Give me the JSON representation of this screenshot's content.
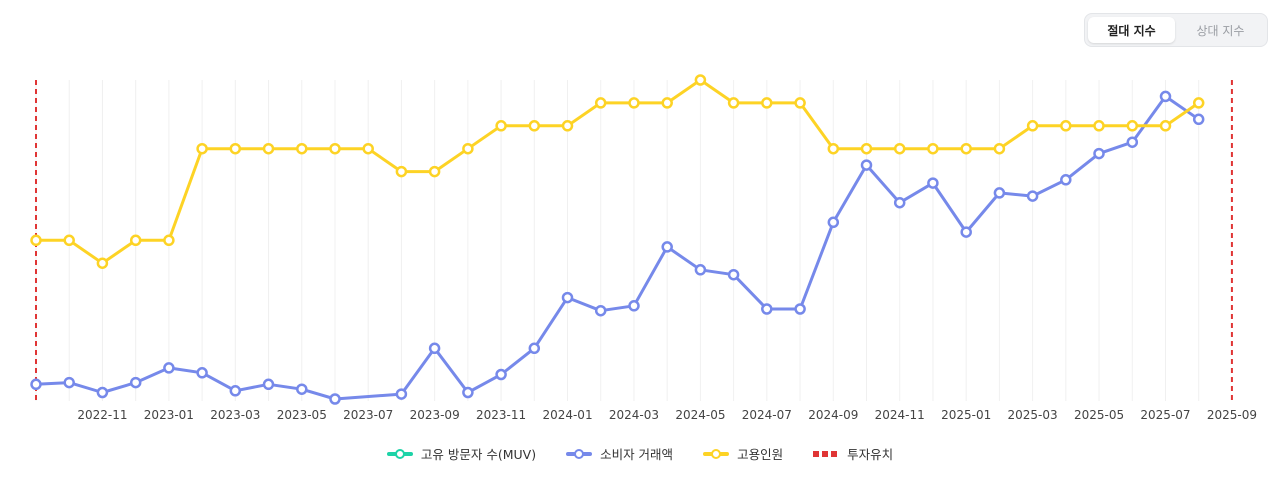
{
  "toggle": {
    "absolute_label": "절대 지수",
    "relative_label": "상대 지수",
    "selected": "absolute"
  },
  "colors": {
    "muv": "#1dd3a7",
    "consumer": "#7689ea",
    "employees": "#fdd325",
    "investment": "#e03535",
    "grid": "#f0f0f0"
  },
  "legend": [
    {
      "key": "muv",
      "label": "고유 방문자 수(MUV)",
      "style": "line-dot"
    },
    {
      "key": "consumer",
      "label": "소비자 거래액",
      "style": "line-dot"
    },
    {
      "key": "employees",
      "label": "고용인원",
      "style": "line-dot"
    },
    {
      "key": "investment",
      "label": "투자유치",
      "style": "dashed"
    }
  ],
  "chart_data": {
    "type": "line",
    "x_start": "2022-09",
    "x_end": "2025-08",
    "x_ticks": [
      "2022-11",
      "2023-01",
      "2023-03",
      "2023-05",
      "2023-07",
      "2023-09",
      "2023-11",
      "2024-01",
      "2024-03",
      "2024-05",
      "2024-07",
      "2024-09",
      "2024-11",
      "2025-01",
      "2025-03",
      "2025-05",
      "2025-07",
      "2025-09"
    ],
    "y_axis_visible": false,
    "grid": "vertical",
    "legend_position": "bottom",
    "series": [
      {
        "name": "소비자 거래액",
        "key": "consumer",
        "points": [
          [
            "2022-09",
            9
          ],
          [
            "2022-10",
            10
          ],
          [
            "2022-11",
            4
          ],
          [
            "2022-12",
            10
          ],
          [
            "2023-01",
            19
          ],
          [
            "2023-02",
            16
          ],
          [
            "2023-03",
            5
          ],
          [
            "2023-04",
            9
          ],
          [
            "2023-05",
            6
          ],
          [
            "2023-06",
            0
          ],
          [
            "2023-08",
            3
          ],
          [
            "2023-09",
            31
          ],
          [
            "2023-10",
            4
          ],
          [
            "2023-11",
            15
          ],
          [
            "2023-12",
            31
          ],
          [
            "2024-01",
            62
          ],
          [
            "2024-02",
            54
          ],
          [
            "2024-03",
            57
          ],
          [
            "2024-04",
            93
          ],
          [
            "2024-05",
            79
          ],
          [
            "2024-06",
            76
          ],
          [
            "2024-07",
            55
          ],
          [
            "2024-08",
            55
          ],
          [
            "2024-09",
            108
          ],
          [
            "2024-10",
            143
          ],
          [
            "2024-11",
            120
          ],
          [
            "2024-12",
            132
          ],
          [
            "2025-01",
            102
          ],
          [
            "2025-02",
            126
          ],
          [
            "2025-03",
            124
          ],
          [
            "2025-04",
            134
          ],
          [
            "2025-05",
            150
          ],
          [
            "2025-06",
            157
          ],
          [
            "2025-07",
            185
          ],
          [
            "2025-08",
            171
          ]
        ]
      },
      {
        "name": "고용인원",
        "key": "employees",
        "points": [
          [
            "2022-09",
            97
          ],
          [
            "2022-10",
            97
          ],
          [
            "2022-11",
            83
          ],
          [
            "2022-12",
            97
          ],
          [
            "2023-01",
            97
          ],
          [
            "2023-02",
            153
          ],
          [
            "2023-03",
            153
          ],
          [
            "2023-04",
            153
          ],
          [
            "2023-05",
            153
          ],
          [
            "2023-06",
            153
          ],
          [
            "2023-07",
            153
          ],
          [
            "2023-08",
            139
          ],
          [
            "2023-09",
            139
          ],
          [
            "2023-10",
            153
          ],
          [
            "2023-11",
            167
          ],
          [
            "2023-12",
            167
          ],
          [
            "2024-01",
            167
          ],
          [
            "2024-02",
            181
          ],
          [
            "2024-03",
            181
          ],
          [
            "2024-04",
            181
          ],
          [
            "2024-05",
            195
          ],
          [
            "2024-06",
            181
          ],
          [
            "2024-07",
            181
          ],
          [
            "2024-08",
            181
          ],
          [
            "2024-09",
            153
          ],
          [
            "2024-10",
            153
          ],
          [
            "2024-11",
            153
          ],
          [
            "2024-12",
            153
          ],
          [
            "2025-01",
            153
          ],
          [
            "2025-02",
            153
          ],
          [
            "2025-03",
            167
          ],
          [
            "2025-04",
            167
          ],
          [
            "2025-05",
            167
          ],
          [
            "2025-06",
            167
          ],
          [
            "2025-07",
            167
          ],
          [
            "2025-08",
            181
          ]
        ]
      }
    ],
    "investment_markers": [
      "2022-09",
      "2025-09"
    ],
    "y_range": [
      0,
      195
    ]
  }
}
